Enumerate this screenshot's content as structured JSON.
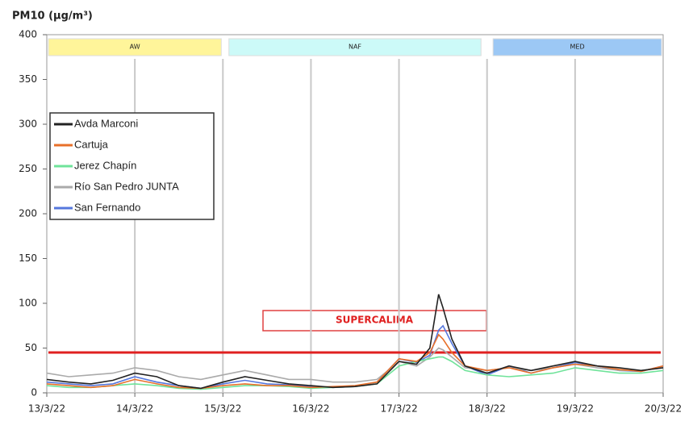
{
  "chart_data": {
    "type": "line",
    "title": "PM10 (µg/m³)",
    "x": [
      0,
      0.25,
      0.5,
      0.75,
      1,
      1.25,
      1.5,
      1.75,
      2,
      2.25,
      2.5,
      2.75,
      3,
      3.25,
      3.5,
      3.75,
      4,
      4.2,
      4.35,
      4.45,
      4.5,
      4.6,
      4.75,
      5,
      5.25,
      5.5,
      5.75,
      6,
      6.25,
      6.5,
      6.75,
      7
    ],
    "xlim": [
      0,
      7
    ],
    "xticks": [
      {
        "value": 0,
        "label": "13/3/22"
      },
      {
        "value": 1,
        "label": "14/3/22"
      },
      {
        "value": 2,
        "label": "15/3/22"
      },
      {
        "value": 3,
        "label": "16/3/22"
      },
      {
        "value": 4,
        "label": "17/3/22"
      },
      {
        "value": 5,
        "label": "18/3/22"
      },
      {
        "value": 6,
        "label": "19/3/22"
      },
      {
        "value": 7,
        "label": "20/3/22"
      }
    ],
    "ylim": [
      0,
      400
    ],
    "yticks": [
      0,
      50,
      100,
      150,
      200,
      250,
      300,
      350,
      400
    ],
    "grid": "x",
    "series": [
      {
        "name": "Avda Marconi",
        "color": "#222222",
        "values": [
          15,
          12,
          10,
          14,
          22,
          18,
          8,
          5,
          12,
          18,
          14,
          10,
          8,
          6,
          7,
          10,
          35,
          32,
          50,
          110,
          95,
          60,
          30,
          22,
          30,
          25,
          30,
          35,
          30,
          28,
          25,
          28
        ]
      },
      {
        "name": "Cartuja",
        "color": "#e8702a",
        "values": [
          10,
          8,
          6,
          8,
          15,
          10,
          6,
          5,
          8,
          10,
          8,
          8,
          6,
          7,
          8,
          12,
          38,
          35,
          45,
          65,
          60,
          45,
          30,
          25,
          28,
          22,
          28,
          32,
          30,
          26,
          24,
          30
        ]
      },
      {
        "name": "Jerez Chapín",
        "color": "#6fe39a",
        "values": [
          8,
          6,
          6,
          8,
          10,
          8,
          5,
          4,
          6,
          8,
          8,
          7,
          5,
          6,
          7,
          10,
          30,
          35,
          38,
          40,
          40,
          35,
          25,
          20,
          18,
          20,
          22,
          28,
          25,
          22,
          22,
          25
        ]
      },
      {
        "name": "Río San Pedro JUNTA",
        "color": "#aaaaaa",
        "values": [
          22,
          18,
          20,
          22,
          28,
          25,
          18,
          15,
          20,
          25,
          20,
          15,
          15,
          12,
          12,
          15,
          35,
          30,
          40,
          50,
          48,
          40,
          28,
          25,
          28,
          25,
          28,
          32,
          28,
          25,
          25,
          28
        ]
      },
      {
        "name": "San Fernando",
        "color": "#5577dd",
        "values": [
          12,
          10,
          8,
          10,
          18,
          12,
          8,
          5,
          10,
          14,
          10,
          9,
          7,
          6,
          7,
          12,
          38,
          34,
          42,
          70,
          75,
          55,
          30,
          20,
          30,
          22,
          28,
          34,
          30,
          25,
          24,
          30
        ]
      }
    ],
    "threshold": 45,
    "threshold_color": "#e02020",
    "bands": [
      {
        "label": "AW",
        "from": 0,
        "to": 2,
        "color": "#fff59a"
      },
      {
        "label": "NAF",
        "from": 2.05,
        "to": 4.95,
        "color": "#ccfaf8"
      },
      {
        "label": "MED",
        "from": 5.05,
        "to": 7,
        "color": "#9cc8f5"
      }
    ],
    "annotation": "SUPERCALIMA"
  }
}
